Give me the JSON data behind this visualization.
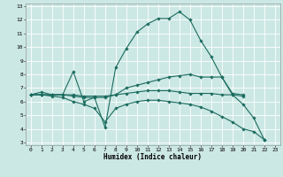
{
  "xlabel": "Humidex (Indice chaleur)",
  "bg_color": "#cce8e4",
  "grid_color": "#ffffff",
  "line_color": "#1a6b5e",
  "xlim": [
    -0.5,
    23.5
  ],
  "ylim": [
    2.8,
    13.2
  ],
  "xticks": [
    0,
    1,
    2,
    3,
    4,
    5,
    6,
    7,
    8,
    9,
    10,
    11,
    12,
    13,
    14,
    15,
    16,
    17,
    18,
    19,
    20,
    21,
    22,
    23
  ],
  "yticks": [
    3,
    4,
    5,
    6,
    7,
    8,
    9,
    10,
    11,
    12,
    13
  ],
  "lines": [
    {
      "x": [
        0,
        1,
        2,
        3,
        4,
        5,
        6,
        7,
        8,
        9,
        10,
        11,
        12,
        13,
        14,
        15,
        16,
        17,
        18,
        19,
        20,
        21,
        22
      ],
      "y": [
        6.5,
        6.7,
        6.5,
        6.5,
        8.2,
        6.0,
        6.3,
        4.1,
        8.5,
        9.9,
        11.1,
        11.7,
        12.1,
        12.1,
        12.6,
        12.0,
        10.5,
        9.3,
        7.8,
        6.5,
        5.8,
        4.8,
        3.2
      ]
    },
    {
      "x": [
        0,
        1,
        2,
        3,
        4,
        5,
        6,
        7,
        8,
        9,
        10,
        11,
        12,
        13,
        14,
        15,
        16,
        17,
        18,
        19,
        20
      ],
      "y": [
        6.5,
        6.5,
        6.5,
        6.5,
        6.5,
        6.4,
        6.4,
        6.4,
        6.5,
        7.0,
        7.2,
        7.4,
        7.6,
        7.8,
        7.9,
        8.0,
        7.8,
        7.8,
        7.8,
        6.6,
        6.5
      ]
    },
    {
      "x": [
        0,
        1,
        2,
        3,
        4,
        5,
        6,
        7,
        8,
        9,
        10,
        11,
        12,
        13,
        14,
        15,
        16,
        17,
        18,
        19,
        20
      ],
      "y": [
        6.5,
        6.5,
        6.5,
        6.5,
        6.4,
        6.3,
        6.3,
        6.3,
        6.5,
        6.6,
        6.7,
        6.8,
        6.8,
        6.8,
        6.7,
        6.6,
        6.6,
        6.6,
        6.5,
        6.5,
        6.4
      ]
    },
    {
      "x": [
        0,
        1,
        2,
        3,
        4,
        5,
        6,
        7,
        8,
        9,
        10,
        11,
        12,
        13,
        14,
        15,
        16,
        17,
        18,
        19,
        20,
        21,
        22
      ],
      "y": [
        6.5,
        6.5,
        6.4,
        6.3,
        6.0,
        5.8,
        5.5,
        4.5,
        5.5,
        5.8,
        6.0,
        6.1,
        6.1,
        6.0,
        5.9,
        5.8,
        5.6,
        5.3,
        4.9,
        4.5,
        4.0,
        3.8,
        3.2
      ]
    }
  ]
}
